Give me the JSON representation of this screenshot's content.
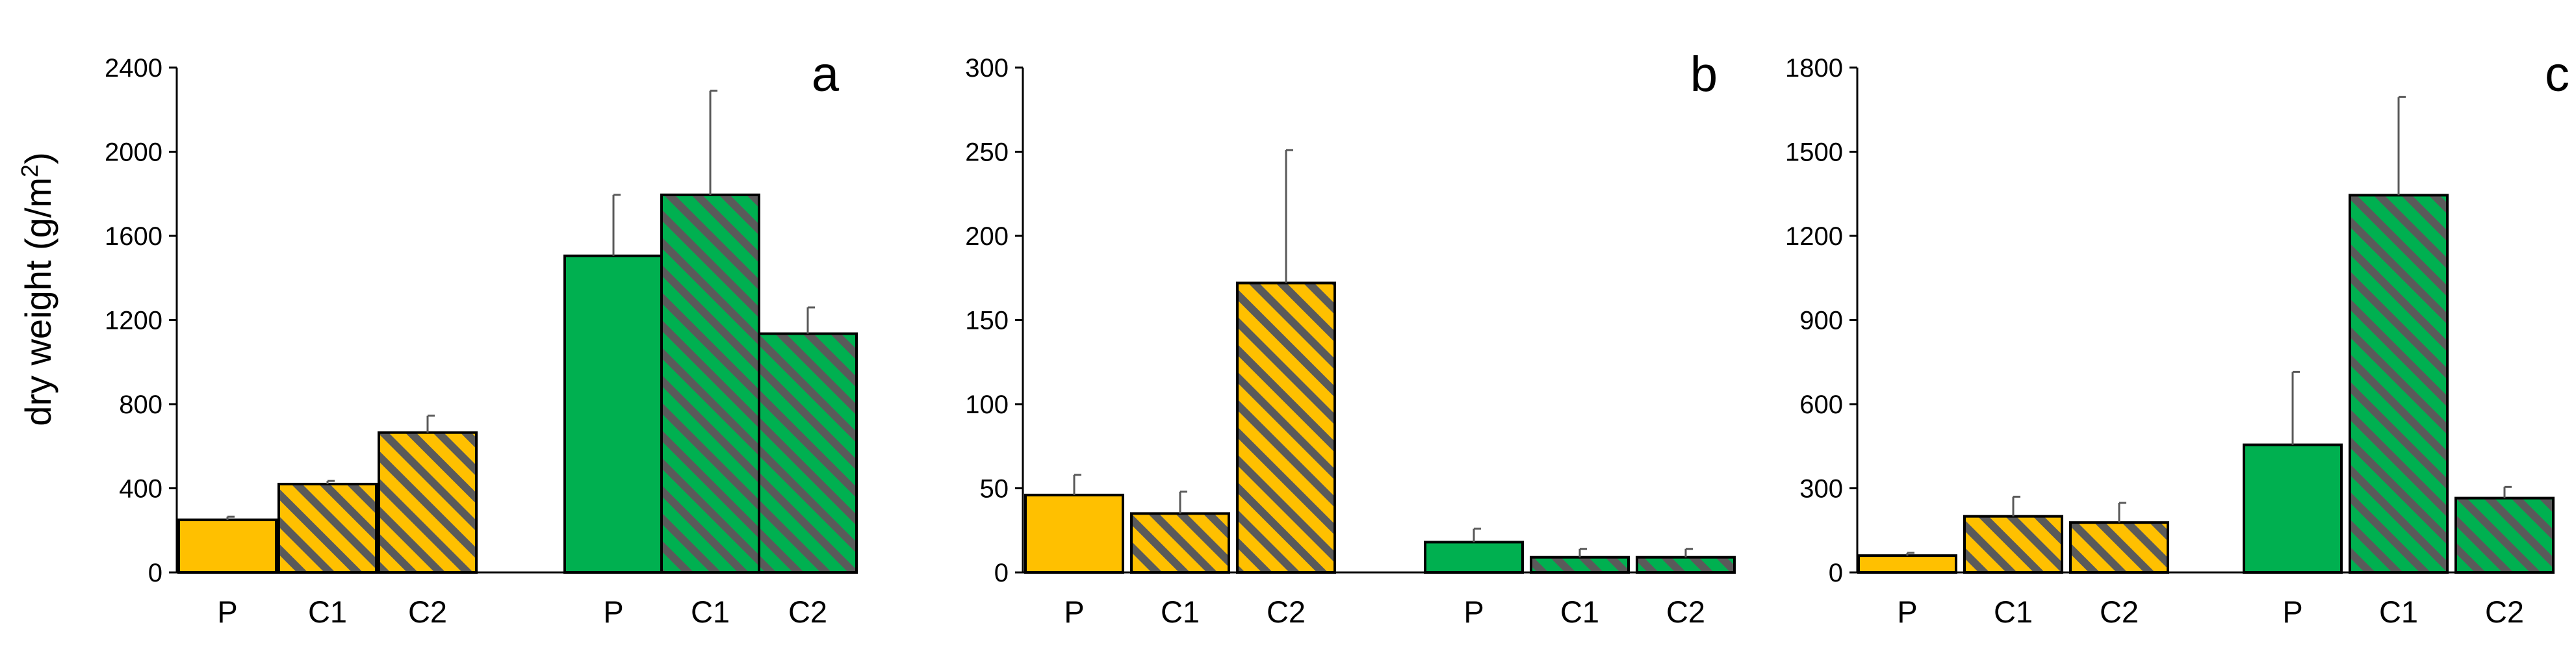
{
  "ylabel": {
    "main": "dry weight (g/m",
    "sup": "2",
    "close": ")"
  },
  "colors": {
    "yellow": "#FFC000",
    "green": "#00B050",
    "hatch": "#5A5A5A",
    "outline": "#000000",
    "axis": "#000000",
    "error": "#595959"
  },
  "chart_data": [
    {
      "type": "bar",
      "panel": "a",
      "ylim": [
        0,
        2400
      ],
      "yticks": [
        "0",
        "400",
        "800",
        "1200",
        "1600",
        "2000",
        "2400"
      ],
      "groups": [
        {
          "color": "yellow",
          "categories": [
            "P",
            "C1",
            "C2"
          ],
          "values": [
            250,
            420,
            665
          ],
          "errors": [
            15,
            15,
            80
          ],
          "hatched": [
            false,
            true,
            true
          ]
        },
        {
          "color": "green",
          "categories": [
            "P",
            "C1",
            "C2"
          ],
          "values": [
            1505,
            1795,
            1135
          ],
          "errors": [
            290,
            495,
            125
          ],
          "hatched": [
            false,
            true,
            true
          ]
        }
      ]
    },
    {
      "type": "bar",
      "panel": "b",
      "ylim": [
        0,
        300
      ],
      "yticks": [
        "0",
        "50",
        "100",
        "150",
        "200",
        "250",
        "300"
      ],
      "groups": [
        {
          "color": "yellow",
          "categories": [
            "P",
            "C1",
            "C2"
          ],
          "values": [
            46,
            35,
            172
          ],
          "errors": [
            12,
            13,
            79
          ],
          "hatched": [
            false,
            true,
            true
          ]
        },
        {
          "color": "green",
          "categories": [
            "P",
            "C1",
            "C2"
          ],
          "values": [
            18,
            9,
            9
          ],
          "errors": [
            8,
            5,
            5
          ],
          "hatched": [
            false,
            true,
            true
          ]
        }
      ]
    },
    {
      "type": "bar",
      "panel": "c",
      "ylim": [
        0,
        1800
      ],
      "yticks": [
        "0",
        "300",
        "600",
        "900",
        "1200",
        "1500",
        "1800"
      ],
      "groups": [
        {
          "color": "yellow",
          "categories": [
            "P",
            "C1",
            "C2"
          ],
          "values": [
            60,
            200,
            178
          ],
          "errors": [
            10,
            70,
            70
          ],
          "hatched": [
            false,
            true,
            true
          ]
        },
        {
          "color": "green",
          "categories": [
            "P",
            "C1",
            "C2"
          ],
          "values": [
            455,
            1345,
            265
          ],
          "errors": [
            260,
            350,
            40
          ],
          "hatched": [
            false,
            true,
            true
          ]
        }
      ]
    }
  ]
}
